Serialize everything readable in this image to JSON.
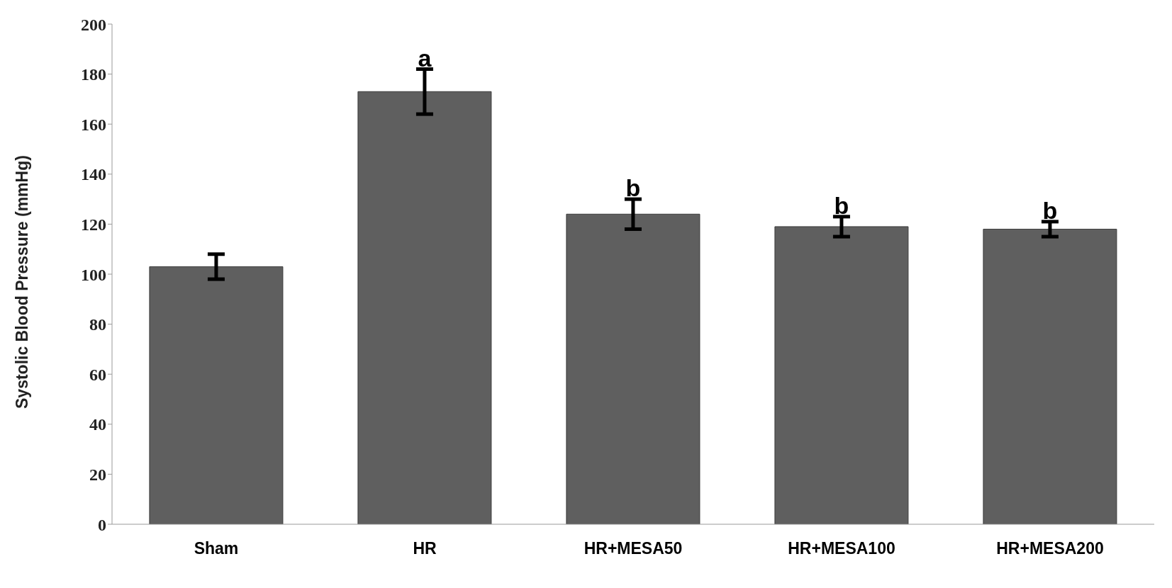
{
  "chart_data": {
    "type": "bar",
    "ylabel": "Systolic Blood Pressure (mmHg)",
    "categories": [
      "Sham",
      "HR",
      "HR+MESA50",
      "HR+MESA100",
      "HR+MESA200"
    ],
    "values": [
      103,
      173,
      124,
      119,
      118
    ],
    "errors": [
      5,
      9,
      6,
      4,
      3
    ],
    "color": "#5f5f5f",
    "ylim": [
      0,
      200
    ],
    "yticks": [
      0,
      20,
      40,
      60,
      80,
      100,
      120,
      140,
      160,
      180,
      200
    ],
    "grid": false,
    "annotations": [
      {
        "text": "a",
        "x": "HR",
        "y": 182
      },
      {
        "text": "b",
        "x": "HR+MESA50",
        "y": 130
      },
      {
        "text": "b",
        "x": "HR+MESA100",
        "y": 123
      },
      {
        "text": "b",
        "x": "HR+MESA200",
        "y": 121
      }
    ]
  }
}
